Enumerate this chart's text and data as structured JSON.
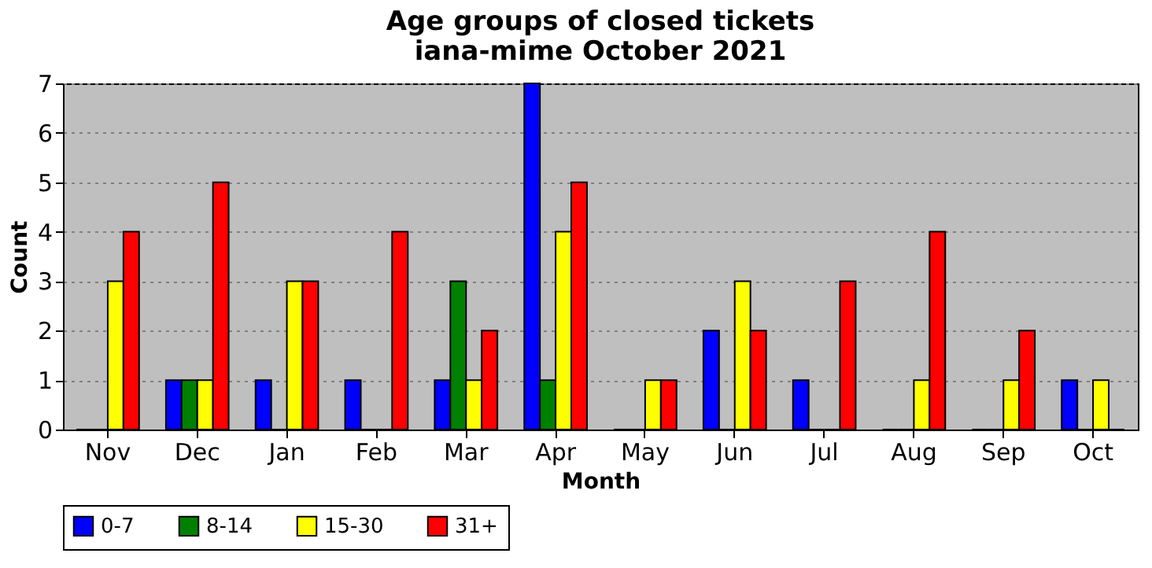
{
  "chart_data": {
    "type": "bar",
    "title": "Age groups of closed tickets",
    "subtitle": "iana-mime October 2021",
    "xlabel": "Month",
    "ylabel": "Count",
    "categories": [
      "Nov",
      "Dec",
      "Jan",
      "Feb",
      "Mar",
      "Apr",
      "May",
      "Jun",
      "Jul",
      "Aug",
      "Sep",
      "Oct"
    ],
    "series": [
      {
        "name": "0-7",
        "color": "#0000ff",
        "values": [
          0,
          1,
          1,
          1,
          1,
          7,
          0,
          2,
          1,
          0,
          0,
          1
        ]
      },
      {
        "name": "8-14",
        "color": "#008000",
        "values": [
          0,
          1,
          0,
          0,
          3,
          1,
          0,
          0,
          0,
          0,
          0,
          0
        ]
      },
      {
        "name": "15-30",
        "color": "#ffff00",
        "values": [
          3,
          1,
          3,
          0,
          1,
          4,
          1,
          3,
          0,
          1,
          1,
          1
        ]
      },
      {
        "name": "31+",
        "color": "#ff0000",
        "values": [
          4,
          5,
          3,
          4,
          2,
          5,
          1,
          2,
          3,
          4,
          2,
          0
        ]
      }
    ],
    "ylim": [
      0,
      7
    ],
    "yticks": [
      0,
      1,
      2,
      3,
      4,
      5,
      6,
      7
    ],
    "grid": "y",
    "legend": "bottom"
  }
}
